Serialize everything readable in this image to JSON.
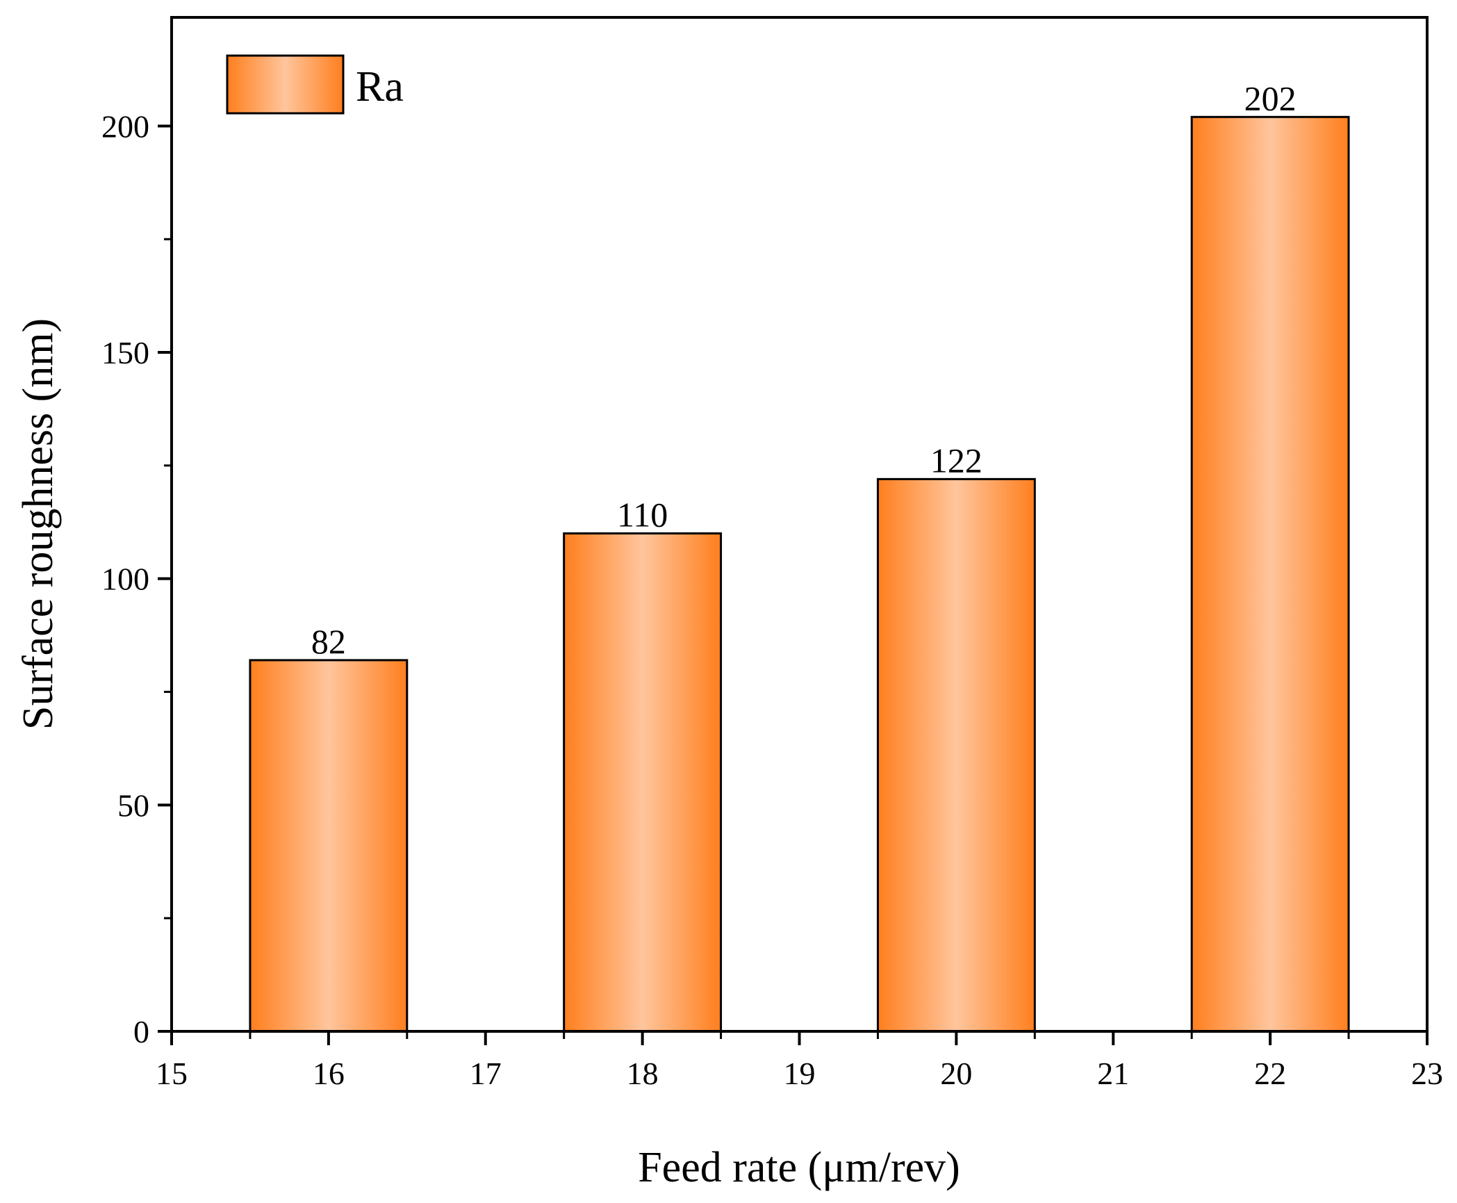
{
  "chart_data": {
    "type": "bar",
    "title": "",
    "xlabel": "Feed rate (μm/rev)",
    "ylabel": "Surface roughness (nm)",
    "x": [
      16,
      18,
      20,
      22
    ],
    "values": [
      82,
      110,
      122,
      202
    ],
    "data_labels": [
      "82",
      "110",
      "122",
      "202"
    ],
    "bar_width": 1,
    "xlim": [
      15,
      23
    ],
    "ylim": [
      0,
      224
    ],
    "x_ticks": [
      15,
      16,
      17,
      18,
      19,
      20,
      21,
      22,
      23
    ],
    "x_tick_labels": [
      "15",
      "16",
      "17",
      "18",
      "19",
      "20",
      "21",
      "22",
      "23"
    ],
    "y_ticks": [
      0,
      50,
      100,
      150,
      200
    ],
    "y_tick_labels": [
      "0",
      "50",
      "100",
      "150",
      "200"
    ],
    "y_minor_ticks": [
      25,
      75,
      125,
      175
    ],
    "grid": false,
    "legend": {
      "position": "top-left",
      "entries": [
        "Ra"
      ]
    },
    "bar_colors": {
      "edge": "#ff7f1e",
      "center": "#ffc59c",
      "outline": "#000000"
    }
  }
}
